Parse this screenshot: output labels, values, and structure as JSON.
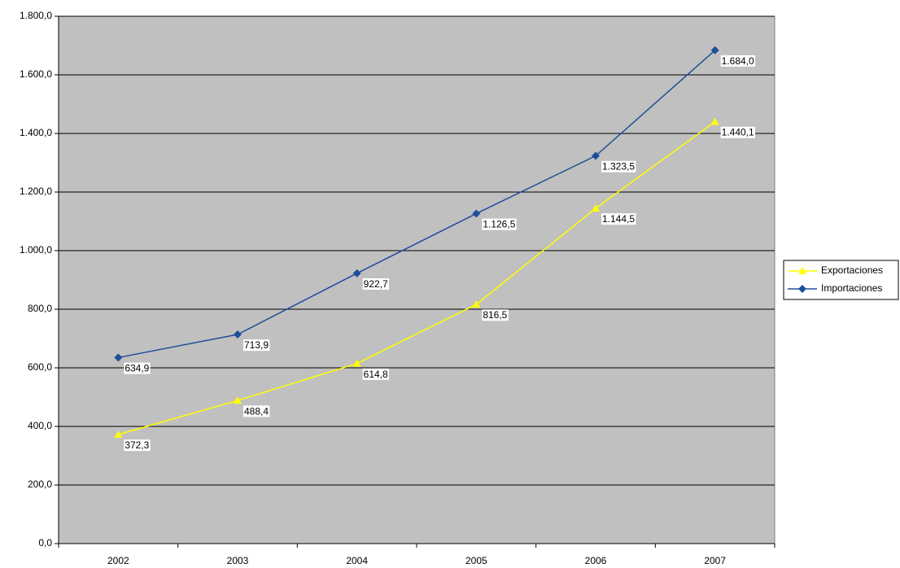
{
  "chart_data": {
    "type": "line",
    "categories": [
      "2002",
      "2003",
      "2004",
      "2005",
      "2006",
      "2007"
    ],
    "series": [
      {
        "name": "Exportaciones",
        "color": "#ffff00",
        "marker": "triangle",
        "values": [
          372.3,
          488.4,
          614.8,
          816.5,
          1144.5,
          1440.1
        ],
        "value_labels": [
          "372,3",
          "488,4",
          "614,8",
          "816,5",
          "1.144,5",
          "1.440,1"
        ]
      },
      {
        "name": "Importaciones",
        "color": "#1f4e99",
        "marker": "diamond",
        "values": [
          634.9,
          713.9,
          922.7,
          1126.5,
          1323.5,
          1684.0
        ],
        "value_labels": [
          "634,9",
          "713,9",
          "922,7",
          "1.126,5",
          "1.323,5",
          "1.684,0"
        ]
      }
    ],
    "ylim": [
      0,
      1800
    ],
    "yticks": [
      {
        "value": 0,
        "label": "0,0"
      },
      {
        "value": 200,
        "label": "200,0"
      },
      {
        "value": 400,
        "label": "400,0"
      },
      {
        "value": 600,
        "label": "600,0"
      },
      {
        "value": 800,
        "label": "800,0"
      },
      {
        "value": 1000,
        "label": "1.000,0"
      },
      {
        "value": 1200,
        "label": "1.200,0"
      },
      {
        "value": 1400,
        "label": "1.400,0"
      },
      {
        "value": 1600,
        "label": "1.600,0"
      },
      {
        "value": 1800,
        "label": "1.800,0"
      }
    ],
    "grid": true,
    "legend": "right",
    "plot_background": "#c0c0c0"
  }
}
